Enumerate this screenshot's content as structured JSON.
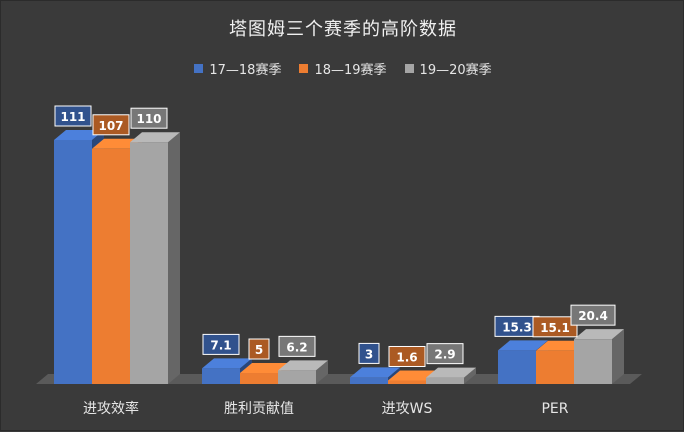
{
  "chart_data": {
    "type": "bar",
    "title": "塔图姆三个赛季的高阶数据",
    "categories": [
      "进攻效率",
      "胜利贡献值",
      "进攻WS",
      "PER"
    ],
    "series": [
      {
        "name": "17—18赛季",
        "color": "#4472c4",
        "values": [
          111,
          7.1,
          3,
          15.3
        ]
      },
      {
        "name": "18—19赛季",
        "color": "#ed7d31",
        "values": [
          107,
          5,
          1.6,
          15.1
        ]
      },
      {
        "name": "19—20赛季",
        "color": "#a5a5a5",
        "values": [
          110,
          6.2,
          2.9,
          20.4
        ]
      }
    ],
    "value_labels": [
      [
        "111",
        "7.1",
        "3",
        "15.3"
      ],
      [
        "107",
        "5",
        "1.6",
        "15.1"
      ],
      [
        "110",
        "6.2",
        "2.9",
        "20.4"
      ]
    ],
    "ylim": [
      0,
      120
    ],
    "grid": false,
    "legend_position": "top",
    "bar_style": "3d"
  }
}
